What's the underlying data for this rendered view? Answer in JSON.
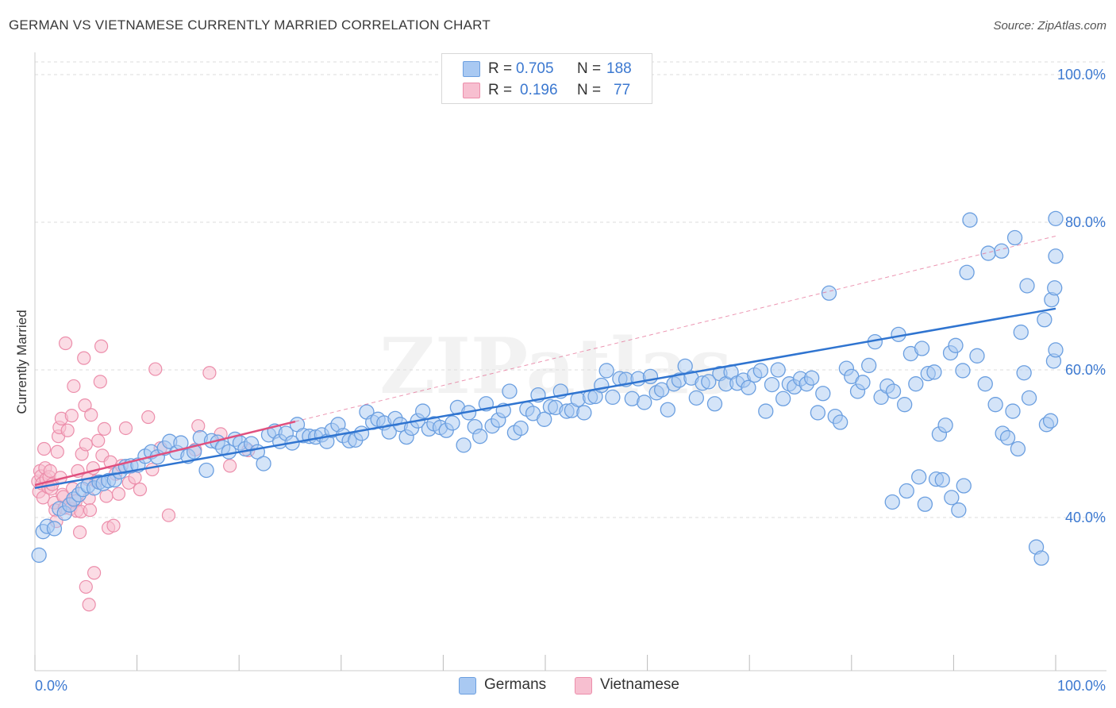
{
  "title": "GERMAN VS VIETNAMESE CURRENTLY MARRIED CORRELATION CHART",
  "source": "Source: ZipAtlas.com",
  "watermark": "ZIPatlas",
  "legend": {
    "rows": [
      {
        "r_label": "R =",
        "r_value": "0.705",
        "n_label": "N =",
        "n_value": "188"
      },
      {
        "r_label": "R =",
        "r_value": "0.196",
        "n_label": "N =",
        "n_value": "77"
      }
    ]
  },
  "bottom_legend": [
    "Germans",
    "Vietnamese"
  ],
  "colors": {
    "german_fill": "#a9c9f2",
    "german_stroke": "#6b9fe0",
    "german_line": "#2f74d0",
    "viet_fill": "#f7bfd0",
    "viet_stroke": "#ec8eab",
    "viet_line": "#e0507f",
    "tick_text": "#3b78d0",
    "grid": "#dddddd"
  },
  "chart_data": {
    "type": "scatter",
    "title": "GERMAN VS VIETNAMESE CURRENTLY MARRIED CORRELATION CHART",
    "xlabel": "",
    "ylabel": "Currently Married",
    "xlim": [
      0,
      100
    ],
    "ylim": [
      20,
      104
    ],
    "x_tick_labels": [
      "0.0%",
      "100.0%"
    ],
    "y_ticks": [
      40,
      60,
      80,
      100
    ],
    "y_tick_labels": [
      "40.0%",
      "60.0%",
      "80.0%",
      "100.0%"
    ],
    "grid": "horizontal dashed",
    "legend_position": "top-center",
    "series": [
      {
        "name": "Germans",
        "r": 0.705,
        "n": 188,
        "trend": {
          "x": [
            0,
            100
          ],
          "y": [
            44.0,
            68.3
          ]
        },
        "points": [
          [
            0.4,
            34.9
          ],
          [
            0.8,
            38.1
          ],
          [
            1.2,
            38.8
          ],
          [
            1.9,
            38.5
          ],
          [
            2.4,
            41.2
          ],
          [
            2.9,
            40.6
          ],
          [
            3.4,
            41.7
          ],
          [
            3.8,
            42.5
          ],
          [
            4.3,
            43.1
          ],
          [
            4.7,
            43.8
          ],
          [
            5.2,
            44.3
          ],
          [
            5.8,
            44.0
          ],
          [
            6.3,
            44.8
          ],
          [
            6.7,
            44.6
          ],
          [
            7.2,
            45.0
          ],
          [
            7.8,
            45.1
          ],
          [
            8.3,
            46.2
          ],
          [
            8.9,
            46.9
          ],
          [
            9.4,
            47.0
          ],
          [
            10.1,
            47.1
          ],
          [
            10.8,
            48.3
          ],
          [
            11.4,
            48.9
          ],
          [
            12.0,
            48.2
          ],
          [
            12.7,
            49.4
          ],
          [
            13.2,
            50.3
          ],
          [
            13.9,
            48.8
          ],
          [
            14.3,
            50.1
          ],
          [
            15.0,
            48.3
          ],
          [
            15.6,
            48.9
          ],
          [
            16.2,
            50.8
          ],
          [
            16.8,
            46.4
          ],
          [
            17.3,
            50.4
          ],
          [
            17.9,
            50.2
          ],
          [
            18.4,
            49.5
          ],
          [
            19.0,
            48.9
          ],
          [
            19.6,
            50.6
          ],
          [
            20.1,
            50.1
          ],
          [
            20.6,
            49.3
          ],
          [
            21.2,
            50.0
          ],
          [
            21.8,
            48.9
          ],
          [
            22.4,
            47.3
          ],
          [
            22.9,
            51.2
          ],
          [
            23.5,
            51.7
          ],
          [
            24.0,
            50.3
          ],
          [
            24.6,
            51.4
          ],
          [
            25.2,
            50.1
          ],
          [
            25.7,
            52.6
          ],
          [
            26.3,
            51.1
          ],
          [
            26.9,
            51.0
          ],
          [
            27.5,
            50.9
          ],
          [
            28.1,
            51.2
          ],
          [
            28.6,
            50.3
          ],
          [
            29.1,
            51.8
          ],
          [
            29.7,
            52.6
          ],
          [
            30.2,
            51.1
          ],
          [
            30.8,
            50.4
          ],
          [
            31.4,
            50.5
          ],
          [
            32.0,
            51.4
          ],
          [
            32.5,
            54.3
          ],
          [
            33.1,
            52.9
          ],
          [
            33.6,
            53.3
          ],
          [
            34.2,
            52.8
          ],
          [
            34.7,
            51.6
          ],
          [
            35.3,
            53.4
          ],
          [
            35.8,
            52.6
          ],
          [
            36.4,
            50.9
          ],
          [
            36.9,
            52.1
          ],
          [
            37.5,
            53.1
          ],
          [
            38.0,
            54.4
          ],
          [
            38.6,
            52.0
          ],
          [
            39.1,
            52.7
          ],
          [
            39.7,
            52.2
          ],
          [
            40.3,
            51.8
          ],
          [
            40.9,
            52.8
          ],
          [
            41.4,
            54.9
          ],
          [
            42.0,
            49.8
          ],
          [
            42.5,
            54.2
          ],
          [
            43.1,
            52.3
          ],
          [
            43.6,
            51.0
          ],
          [
            44.2,
            55.4
          ],
          [
            44.8,
            52.4
          ],
          [
            45.4,
            53.2
          ],
          [
            45.9,
            54.5
          ],
          [
            46.5,
            57.1
          ],
          [
            47.0,
            51.5
          ],
          [
            47.6,
            52.1
          ],
          [
            48.2,
            54.7
          ],
          [
            48.8,
            54.1
          ],
          [
            49.3,
            56.6
          ],
          [
            49.9,
            53.3
          ],
          [
            50.5,
            55.0
          ],
          [
            51.0,
            54.9
          ],
          [
            51.5,
            57.1
          ],
          [
            52.1,
            54.4
          ],
          [
            52.6,
            54.5
          ],
          [
            53.2,
            56.0
          ],
          [
            53.8,
            54.2
          ],
          [
            54.4,
            56.3
          ],
          [
            54.9,
            56.4
          ],
          [
            55.5,
            57.9
          ],
          [
            56.0,
            59.9
          ],
          [
            56.6,
            56.3
          ],
          [
            57.3,
            58.8
          ],
          [
            57.9,
            58.7
          ],
          [
            58.5,
            56.1
          ],
          [
            59.1,
            58.8
          ],
          [
            59.7,
            55.6
          ],
          [
            60.3,
            59.1
          ],
          [
            60.9,
            56.9
          ],
          [
            61.4,
            57.3
          ],
          [
            62.0,
            54.6
          ],
          [
            62.6,
            58.1
          ],
          [
            63.1,
            58.6
          ],
          [
            63.7,
            60.5
          ],
          [
            64.3,
            58.9
          ],
          [
            64.8,
            56.2
          ],
          [
            65.4,
            58.2
          ],
          [
            66.0,
            58.4
          ],
          [
            66.6,
            55.4
          ],
          [
            67.1,
            59.5
          ],
          [
            67.7,
            58.1
          ],
          [
            68.2,
            59.7
          ],
          [
            68.8,
            58.2
          ],
          [
            69.4,
            58.6
          ],
          [
            69.9,
            57.6
          ],
          [
            70.5,
            59.3
          ],
          [
            71.1,
            59.9
          ],
          [
            71.6,
            54.4
          ],
          [
            72.2,
            58.0
          ],
          [
            72.8,
            60.0
          ],
          [
            73.3,
            56.1
          ],
          [
            73.9,
            58.1
          ],
          [
            74.4,
            57.7
          ],
          [
            75.0,
            58.8
          ],
          [
            75.6,
            58.1
          ],
          [
            76.1,
            58.9
          ],
          [
            76.7,
            54.2
          ],
          [
            77.2,
            56.8
          ],
          [
            77.8,
            70.4
          ],
          [
            78.4,
            53.7
          ],
          [
            78.9,
            52.9
          ],
          [
            79.5,
            60.2
          ],
          [
            80.0,
            59.1
          ],
          [
            80.6,
            57.1
          ],
          [
            81.1,
            58.3
          ],
          [
            81.7,
            60.6
          ],
          [
            82.3,
            63.8
          ],
          [
            82.9,
            56.3
          ],
          [
            83.5,
            57.8
          ],
          [
            84.1,
            57.1
          ],
          [
            84.6,
            64.8
          ],
          [
            85.2,
            55.3
          ],
          [
            85.8,
            62.2
          ],
          [
            86.3,
            58.1
          ],
          [
            86.9,
            62.9
          ],
          [
            87.5,
            59.5
          ],
          [
            88.1,
            59.7
          ],
          [
            88.6,
            51.3
          ],
          [
            89.2,
            52.5
          ],
          [
            89.7,
            62.3
          ],
          [
            90.2,
            63.3
          ],
          [
            90.9,
            59.9
          ],
          [
            91.3,
            73.2
          ],
          [
            92.3,
            61.9
          ],
          [
            93.1,
            58.1
          ],
          [
            94.1,
            55.3
          ],
          [
            94.8,
            51.4
          ],
          [
            95.3,
            50.8
          ],
          [
            95.8,
            54.4
          ],
          [
            96.3,
            49.3
          ],
          [
            96.9,
            59.6
          ],
          [
            97.4,
            56.2
          ],
          [
            98.1,
            36.0
          ],
          [
            98.6,
            34.5
          ],
          [
            99.1,
            52.6
          ],
          [
            99.5,
            53.1
          ],
          [
            99.8,
            61.2
          ],
          [
            100.0,
            62.7
          ],
          [
            100.0,
            75.4
          ],
          [
            100.0,
            80.5
          ],
          [
            88.3,
            45.2
          ],
          [
            88.9,
            45.1
          ],
          [
            90.5,
            41.0
          ],
          [
            91.6,
            80.3
          ],
          [
            93.4,
            75.8
          ],
          [
            94.7,
            76.1
          ],
          [
            96.0,
            77.9
          ],
          [
            96.6,
            65.1
          ],
          [
            97.2,
            71.4
          ],
          [
            98.9,
            66.8
          ],
          [
            99.6,
            69.5
          ],
          [
            99.9,
            71.1
          ],
          [
            86.6,
            45.5
          ],
          [
            84.0,
            42.1
          ],
          [
            85.4,
            43.6
          ],
          [
            87.2,
            41.8
          ],
          [
            89.8,
            42.7
          ],
          [
            91.0,
            44.3
          ]
        ]
      },
      {
        "name": "Vietnamese",
        "r": 0.196,
        "n": 77,
        "trend": {
          "x": [
            0,
            25.5
          ],
          "y": [
            44.4,
            53.0
          ]
        },
        "points": [
          [
            0.3,
            44.9
          ],
          [
            0.4,
            43.5
          ],
          [
            0.5,
            46.3
          ],
          [
            0.6,
            45.6
          ],
          [
            0.7,
            44.6
          ],
          [
            0.8,
            42.7
          ],
          [
            0.9,
            49.3
          ],
          [
            1.0,
            46.7
          ],
          [
            1.1,
            45.2
          ],
          [
            1.3,
            44.1
          ],
          [
            1.4,
            45.5
          ],
          [
            1.5,
            46.3
          ],
          [
            1.6,
            43.9
          ],
          [
            1.7,
            44.5
          ],
          [
            1.9,
            42.0
          ],
          [
            2.0,
            41.0
          ],
          [
            2.1,
            39.5
          ],
          [
            2.2,
            48.9
          ],
          [
            2.3,
            51.0
          ],
          [
            2.4,
            52.2
          ],
          [
            2.5,
            45.4
          ],
          [
            2.6,
            53.4
          ],
          [
            2.7,
            43.1
          ],
          [
            2.8,
            42.8
          ],
          [
            2.9,
            41.3
          ],
          [
            3.0,
            63.6
          ],
          [
            3.2,
            51.8
          ],
          [
            3.4,
            41.9
          ],
          [
            3.5,
            41.2
          ],
          [
            3.6,
            53.8
          ],
          [
            3.7,
            43.9
          ],
          [
            3.8,
            57.8
          ],
          [
            4.0,
            42.2
          ],
          [
            4.1,
            40.9
          ],
          [
            4.2,
            46.3
          ],
          [
            4.4,
            38.0
          ],
          [
            4.5,
            40.8
          ],
          [
            4.6,
            48.6
          ],
          [
            4.8,
            61.6
          ],
          [
            4.9,
            55.2
          ],
          [
            5.0,
            49.9
          ],
          [
            5.2,
            45.2
          ],
          [
            5.3,
            42.6
          ],
          [
            5.4,
            41.0
          ],
          [
            5.5,
            53.9
          ],
          [
            5.7,
            46.7
          ],
          [
            5.8,
            32.5
          ],
          [
            6.0,
            44.9
          ],
          [
            6.2,
            50.4
          ],
          [
            6.4,
            58.4
          ],
          [
            6.5,
            63.2
          ],
          [
            6.6,
            48.4
          ],
          [
            6.8,
            52.0
          ],
          [
            7.0,
            42.9
          ],
          [
            7.2,
            38.6
          ],
          [
            7.4,
            47.5
          ],
          [
            7.7,
            38.9
          ],
          [
            7.9,
            45.9
          ],
          [
            8.2,
            43.2
          ],
          [
            8.5,
            47.0
          ],
          [
            8.9,
            52.1
          ],
          [
            9.2,
            44.7
          ],
          [
            9.8,
            45.4
          ],
          [
            10.3,
            43.8
          ],
          [
            11.1,
            53.6
          ],
          [
            11.5,
            46.5
          ],
          [
            11.8,
            60.1
          ],
          [
            12.3,
            49.4
          ],
          [
            13.1,
            40.3
          ],
          [
            15.7,
            49.2
          ],
          [
            16.0,
            52.4
          ],
          [
            17.1,
            59.6
          ],
          [
            18.2,
            51.3
          ],
          [
            19.1,
            47.0
          ],
          [
            20.9,
            49.1
          ],
          [
            5.0,
            30.6
          ],
          [
            5.3,
            28.2
          ]
        ]
      }
    ]
  }
}
